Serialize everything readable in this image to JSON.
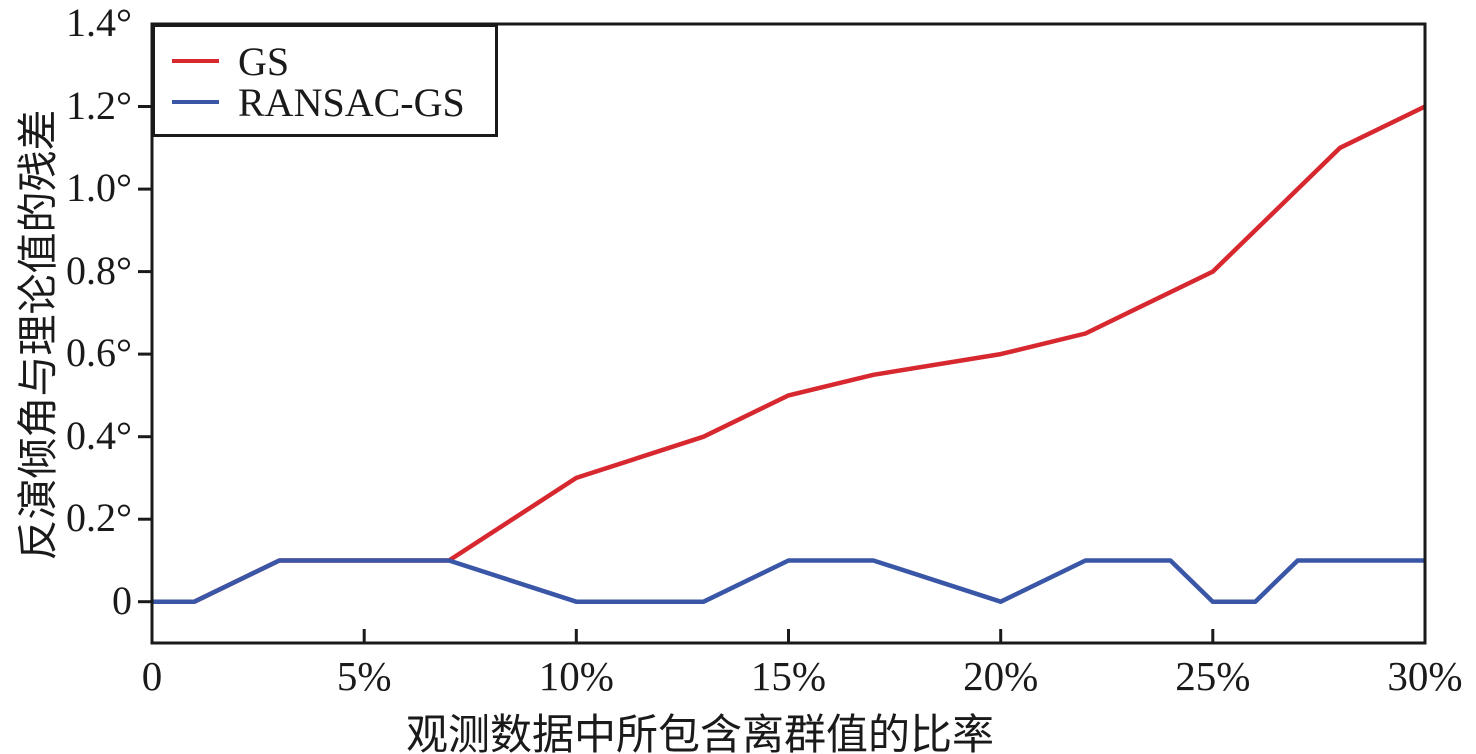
{
  "figure": {
    "background_color": "#ffffff",
    "axis_color": "#1a1a1a",
    "text_color": "#1a1a1a"
  },
  "chart_data": {
    "type": "line",
    "title": "",
    "xlabel": "观测数据中所包含离群值的比率",
    "ylabel": "反演倾角与理论值的残差",
    "xlim": [
      0,
      30
    ],
    "ylim": [
      -0.1,
      1.4
    ],
    "grid": false,
    "legend_position": "top-left",
    "x_tick_unit": "percent",
    "y_tick_unit": "degrees",
    "x_ticks": [
      {
        "value": 0,
        "label": "0"
      },
      {
        "value": 5,
        "label": "5%"
      },
      {
        "value": 10,
        "label": "10%"
      },
      {
        "value": 15,
        "label": "15%"
      },
      {
        "value": 20,
        "label": "20%"
      },
      {
        "value": 25,
        "label": "25%"
      },
      {
        "value": 30,
        "label": "30%"
      }
    ],
    "y_ticks": [
      {
        "value": 0.0,
        "label": "0"
      },
      {
        "value": 0.2,
        "label": "0.2°"
      },
      {
        "value": 0.4,
        "label": "0.4°"
      },
      {
        "value": 0.6,
        "label": "0.6°"
      },
      {
        "value": 0.8,
        "label": "0.8°"
      },
      {
        "value": 1.0,
        "label": "1.0°"
      },
      {
        "value": 1.2,
        "label": "1.2°"
      },
      {
        "value": 1.4,
        "label": "1.4°"
      }
    ],
    "series": [
      {
        "name": "GS",
        "color": "#d7282f",
        "points": [
          [
            0,
            0
          ],
          [
            1,
            0
          ],
          [
            3,
            0.1
          ],
          [
            7,
            0.1
          ],
          [
            10,
            0.3
          ],
          [
            13,
            0.4
          ],
          [
            15,
            0.5
          ],
          [
            17,
            0.55
          ],
          [
            20,
            0.6
          ],
          [
            22,
            0.65
          ],
          [
            25,
            0.8
          ],
          [
            28,
            1.1
          ],
          [
            30,
            1.2
          ]
        ]
      },
      {
        "name": "RANSAC-GS",
        "color": "#3a56a6",
        "points": [
          [
            0,
            0
          ],
          [
            1,
            0
          ],
          [
            3,
            0.1
          ],
          [
            7,
            0.1
          ],
          [
            10,
            0
          ],
          [
            13,
            0
          ],
          [
            15,
            0.1
          ],
          [
            17,
            0.1
          ],
          [
            20,
            0
          ],
          [
            22,
            0.1
          ],
          [
            24,
            0.1
          ],
          [
            25,
            0
          ],
          [
            26,
            0
          ],
          [
            27,
            0.1
          ],
          [
            30,
            0.1
          ]
        ]
      }
    ]
  }
}
